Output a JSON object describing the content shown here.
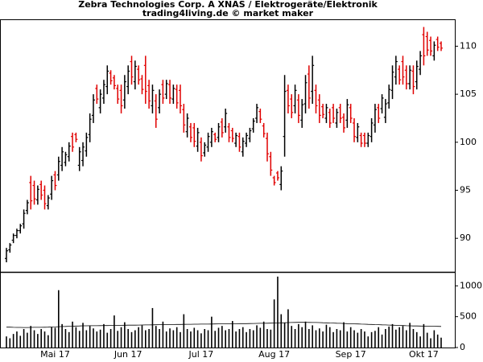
{
  "chart_data": [
    {
      "type": "ohlc",
      "title": "Zebra Technologies Corp. A XNAS / Elektrogeräte/Elektronik",
      "subtitle": "trading4living.de © market maker",
      "categories": [
        null,
        null,
        null,
        null,
        null,
        null,
        null,
        null,
        null,
        null,
        null,
        null,
        null,
        null,
        "Mai 17",
        null,
        null,
        null,
        null,
        null,
        null,
        null,
        null,
        null,
        null,
        null,
        null,
        null,
        null,
        null,
        null,
        null,
        null,
        null,
        null,
        "Jun 17",
        null,
        null,
        null,
        null,
        null,
        null,
        null,
        null,
        null,
        null,
        null,
        null,
        null,
        null,
        null,
        null,
        null,
        null,
        null,
        null,
        "Jul 17",
        null,
        null,
        null,
        null,
        null,
        null,
        null,
        null,
        null,
        null,
        null,
        null,
        null,
        null,
        null,
        null,
        null,
        null,
        null,
        null,
        "Aug 17",
        null,
        null,
        null,
        null,
        null,
        null,
        null,
        null,
        null,
        null,
        null,
        null,
        null,
        null,
        null,
        null,
        null,
        null,
        null,
        null,
        null,
        "Sep 17",
        null,
        null,
        null,
        null,
        null,
        null,
        null,
        null,
        null,
        null,
        null,
        null,
        null,
        null,
        null,
        null,
        null,
        null,
        null,
        null,
        "Okt 17",
        null,
        null,
        null,
        null,
        null
      ],
      "open": [
        87.9,
        88.8,
        89.8,
        90.3,
        90.8,
        91.5,
        92.9,
        95.8,
        95.5,
        94,
        95.6,
        95,
        93.4,
        94.6,
        96.6,
        96.6,
        97.6,
        97.9,
        98.5,
        100.6,
        100.8,
        97.6,
        98.1,
        99.1,
        100.8,
        102.8,
        105.6,
        103.6,
        104.6,
        105.8,
        107.2,
        106.7,
        105.6,
        105.4,
        104.4,
        105.8,
        108.4,
        106.3,
        107.6,
        106.6,
        108,
        105.9,
        103.8,
        104.3,
        103.6,
        106,
        105,
        106,
        104.5,
        105.5,
        105.4,
        103.4,
        101.1,
        101.6,
        101.5,
        99.6,
        100,
        98.9,
        99.5,
        100,
        100.8,
        100.5,
        102.1,
        101.6,
        101.6,
        101.2,
        99.9,
        100.6,
        99,
        99.9,
        100.4,
        101.4,
        102.5,
        103.2,
        101.7,
        100.4,
        98.5,
        96.3,
        96.8,
        95.6,
        100.6,
        105.4,
        104.5,
        103.8,
        104.4,
        102.3,
        104,
        107.1,
        105.3,
        105.4,
        104.4,
        103.7,
        102.5,
        103.1,
        103.6,
        102,
        103.6,
        102.6,
        102.3,
        103.6,
        102,
        100.5,
        100.7,
        100.7,
        99.9,
        100.6,
        101.8,
        103.6,
        103.5,
        102.6,
        104.1,
        105.4,
        106.8,
        107.6,
        108.4,
        107.5,
        106.1,
        107.4,
        106.3,
        107.6,
        111.2,
        111,
        110.6,
        109,
        110.7,
        110.3
      ],
      "high": [
        89,
        89.5,
        90.5,
        91,
        91.5,
        93,
        94,
        96.5,
        96,
        95.5,
        96,
        95.5,
        94.5,
        96.5,
        97,
        98.5,
        99.5,
        99,
        100,
        101,
        101,
        99.5,
        100,
        101,
        103,
        105,
        106,
        105.5,
        106.5,
        108,
        107.5,
        107,
        106,
        106,
        107,
        108,
        109,
        108.5,
        108,
        107,
        109,
        106.5,
        106,
        105,
        105.5,
        106.5,
        106.5,
        106.5,
        106,
        106,
        106,
        104,
        103,
        102,
        102,
        101.5,
        100.5,
        100,
        101,
        101.5,
        101,
        102,
        102.5,
        103.5,
        102,
        101.5,
        101,
        101,
        100.5,
        101,
        101.5,
        102.5,
        104,
        103.5,
        102,
        101,
        99,
        96.5,
        97,
        97.5,
        107,
        106,
        105,
        106,
        105,
        104.5,
        107,
        108,
        109,
        106,
        105,
        104,
        104,
        103.5,
        104,
        103.5,
        104,
        103,
        104.5,
        104,
        102.5,
        102,
        101,
        101,
        101,
        102.5,
        104,
        104,
        105,
        104.5,
        106,
        108,
        109,
        108,
        109,
        108,
        108,
        108,
        108.5,
        109.5,
        112,
        111.5,
        111,
        110.5,
        111,
        110.5
      ],
      "low": [
        87.5,
        88.5,
        89.5,
        90,
        90.5,
        91,
        92.5,
        93,
        93.5,
        93.5,
        94,
        93,
        93,
        94,
        95,
        96,
        97,
        97.5,
        98,
        99,
        100,
        97,
        97.5,
        98.5,
        100,
        102,
        104,
        103,
        104,
        105,
        106,
        105.5,
        104,
        103,
        103.5,
        105,
        106,
        105.5,
        106,
        105,
        104,
        103.5,
        103,
        101.5,
        103,
        104,
        104.5,
        104,
        104,
        103.5,
        103,
        101,
        100.5,
        100,
        99.5,
        99,
        98,
        98.5,
        99,
        99.5,
        100,
        100,
        100.5,
        101,
        100,
        100,
        99.5,
        99,
        98.5,
        99.5,
        100,
        101,
        102,
        102,
        100.5,
        98,
        96.5,
        95.5,
        96,
        95,
        98.5,
        103,
        102.5,
        103,
        102,
        101.5,
        103,
        103.5,
        104,
        103,
        102,
        102.5,
        102,
        101.5,
        102,
        101.5,
        102,
        101,
        101.5,
        102,
        100,
        100,
        99.5,
        99.5,
        99.5,
        100,
        101,
        102,
        103,
        102,
        103.5,
        104.5,
        106,
        106,
        106,
        105.5,
        105.5,
        105,
        105.5,
        107,
        108,
        109,
        109,
        108.5,
        109.5,
        109.5
      ],
      "close": [
        88.7,
        89.3,
        90.3,
        90.8,
        91.3,
        92.6,
        93.7,
        93.9,
        94.1,
        95.1,
        94.5,
        93.6,
        94.2,
        96,
        95.5,
        98,
        99,
        98.7,
        99.6,
        99.5,
        100.3,
        99,
        99.5,
        100.5,
        102.4,
        104.4,
        104.5,
        105,
        106,
        107.4,
        106.4,
        105.9,
        104.5,
        103.8,
        106.3,
        107.4,
        106.8,
        107.9,
        106.5,
        105.5,
        105.3,
        104.3,
        105.4,
        102.4,
        105,
        104.6,
        106.1,
        104.6,
        105.6,
        104.1,
        103.8,
        101.8,
        102.5,
        100.5,
        100.1,
        101,
        98.6,
        99.7,
        100.6,
        101.1,
        100.3,
        101.6,
        101,
        103,
        100.5,
        100.4,
        100.7,
        99.5,
        100.1,
        100.7,
        101.2,
        102.2,
        103.6,
        102.4,
        100.9,
        98.8,
        97.1,
        95.8,
        96.3,
        97,
        105.3,
        103.8,
        103.1,
        105.4,
        102.8,
        103.9,
        106.2,
        104.6,
        108,
        103.8,
        102.8,
        102.9,
        103.6,
        102,
        102.5,
        103.1,
        102.5,
        101.5,
        103.9,
        102.5,
        100.6,
        101.6,
        99.9,
        99.9,
        100.7,
        102,
        103.4,
        102.5,
        104.6,
        104,
        105.5,
        107.3,
        108.4,
        106.5,
        106.8,
        106.1,
        107.5,
        105.8,
        107.9,
        109,
        109,
        109.6,
        109.5,
        110.1,
        109.9,
        109.8
      ],
      "up_color": "#000000",
      "down_color": "#e00000",
      "ylim": [
        86.5,
        112.8
      ],
      "yticks": [
        90,
        95,
        100,
        105,
        110
      ]
    },
    {
      "type": "bar",
      "values": [
        180,
        150,
        220,
        260,
        190,
        300,
        240,
        350,
        280,
        220,
        300,
        260,
        200,
        330,
        320,
        930,
        380,
        300,
        250,
        420,
        330,
        270,
        400,
        280,
        350,
        310,
        260,
        290,
        380,
        240,
        300,
        520,
        270,
        330,
        410,
        300,
        250,
        280,
        330,
        360,
        280,
        300,
        640,
        350,
        300,
        420,
        260,
        310,
        280,
        330,
        250,
        540,
        300,
        260,
        320,
        280,
        230,
        300,
        280,
        500,
        270,
        320,
        350,
        280,
        300,
        430,
        260,
        300,
        330,
        250,
        300,
        280,
        360,
        320,
        420,
        300,
        290,
        780,
        1150,
        540,
        400,
        620,
        350,
        300,
        380,
        330,
        420,
        300,
        360,
        280,
        310,
        260,
        370,
        330,
        250,
        300,
        280,
        410,
        260,
        330,
        280,
        240,
        300,
        260,
        180,
        250,
        270,
        330,
        210,
        300,
        340,
        380,
        290,
        330,
        350,
        280,
        400,
        300,
        250,
        180,
        380,
        240,
        150,
        280,
        210,
        160
      ],
      "average": [
        330,
        330,
        328,
        326,
        326,
        325,
        325,
        326,
        327,
        328,
        328,
        329,
        330,
        332,
        334,
        338,
        340,
        342,
        344,
        346,
        348,
        350,
        352,
        352,
        353,
        354,
        354,
        355,
        356,
        356,
        357,
        358,
        358,
        360,
        361,
        362,
        362,
        363,
        364,
        365,
        366,
        366,
        368,
        369,
        370,
        371,
        372,
        372,
        373,
        374,
        375,
        376,
        377,
        377,
        378,
        378,
        379,
        380,
        380,
        381,
        382,
        383,
        384,
        384,
        385,
        386,
        386,
        387,
        388,
        388,
        389,
        390,
        391,
        392,
        393,
        394,
        395,
        396,
        398,
        400,
        402,
        404,
        406,
        407,
        408,
        408,
        408,
        407,
        406,
        405,
        404,
        402,
        400,
        398,
        396,
        394,
        392,
        390,
        388,
        386,
        384,
        382,
        380,
        378,
        376,
        374,
        372,
        370,
        368,
        366,
        364,
        362,
        360,
        358,
        356,
        354,
        352,
        350,
        349,
        348,
        347,
        346,
        345,
        344,
        343,
        342
      ],
      "color": "#000000",
      "average_color": "#000000",
      "ylim": [
        0,
        1200
      ],
      "yticks": [
        0,
        500,
        1000
      ]
    }
  ]
}
